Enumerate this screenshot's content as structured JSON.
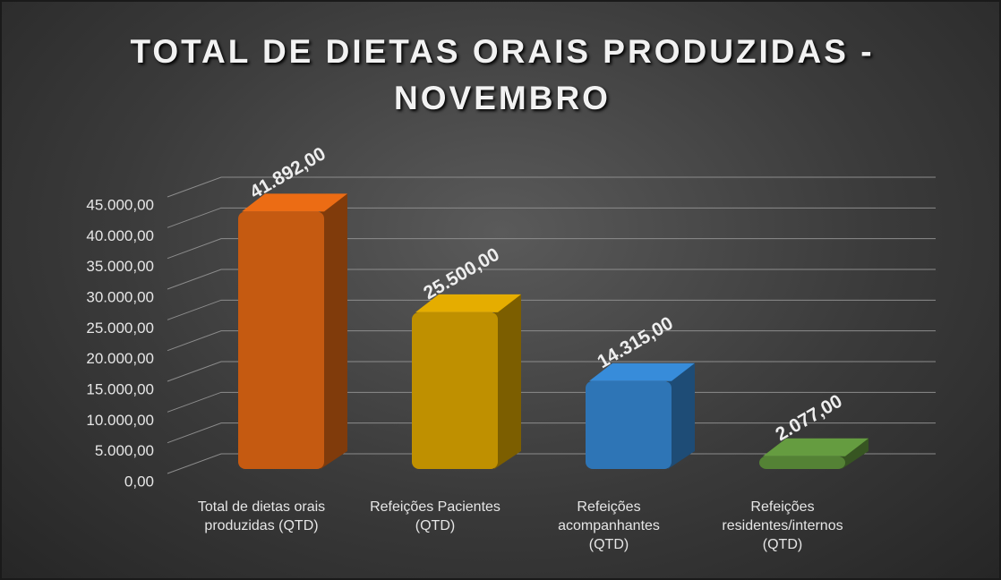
{
  "chart_data": {
    "type": "bar3d",
    "title": "TOTAL DE DIETAS ORAIS PRODUZIDAS - NOVEMBRO",
    "categories": [
      "Total de dietas orais produzidas (QTD)",
      "Refeições Pacientes (QTD)",
      "Refeições acompanhantes (QTD)",
      "Refeições residentes/internos (QTD)"
    ],
    "values": [
      41892,
      25500,
      14315,
      2077
    ],
    "value_labels": [
      "41.892,00",
      "25.500,00",
      "14.315,00",
      "2.077,00"
    ],
    "colors": [
      "#c55a11",
      "#bf9000",
      "#2e75b6",
      "#548235"
    ],
    "ylim": [
      0,
      45000
    ],
    "yticks": [
      {
        "value": 0,
        "label": "0,00"
      },
      {
        "value": 5000,
        "label": "5.000,00"
      },
      {
        "value": 10000,
        "label": "10.000,00"
      },
      {
        "value": 15000,
        "label": "15.000,00"
      },
      {
        "value": 20000,
        "label": "20.000,00"
      },
      {
        "value": 25000,
        "label": "25.000,00"
      },
      {
        "value": 30000,
        "label": "30.000,00"
      },
      {
        "value": 35000,
        "label": "35.000,00"
      },
      {
        "value": 40000,
        "label": "40.000,00"
      },
      {
        "value": 45000,
        "label": "45.000,00"
      }
    ],
    "grid": true
  }
}
